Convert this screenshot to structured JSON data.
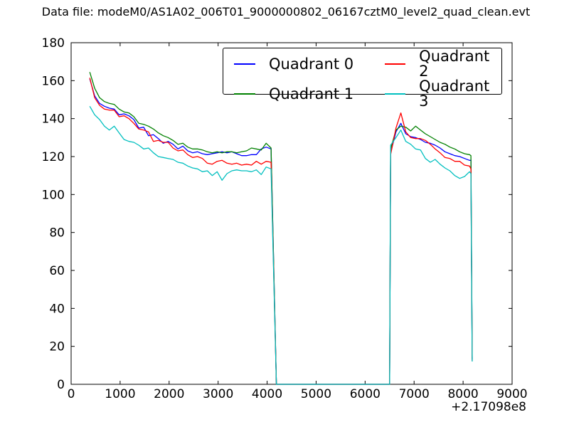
{
  "figure": {
    "title": "Data file: modeM0/AS1A02_006T01_9000000802_06167cztM0_level2_quad_clean.evt",
    "background": "#ffffff"
  },
  "chart_data": {
    "type": "line",
    "title": "Data file: modeM0/AS1A02_006T01_9000000802_06167cztM0_level2_quad_clean.evt",
    "xlabel": "",
    "ylabel": "",
    "x_axis_offset": "+2.17098e8",
    "xlim": [
      0,
      9000
    ],
    "ylim": [
      0,
      180
    ],
    "xticks": [
      0,
      1000,
      2000,
      3000,
      4000,
      5000,
      6000,
      7000,
      8000,
      9000
    ],
    "yticks": [
      0,
      20,
      40,
      60,
      80,
      100,
      120,
      140,
      160,
      180
    ],
    "grid": false,
    "axes_color": "#000000",
    "legend": {
      "location": "upper center",
      "ncol": 2,
      "entries": [
        "Quadrant 0",
        "Quadrant 1",
        "Quadrant 2",
        "Quadrant 3"
      ]
    },
    "x": [
      380,
      480,
      580,
      680,
      780,
      880,
      980,
      1080,
      1180,
      1280,
      1380,
      1480,
      1580,
      1680,
      1780,
      1880,
      1980,
      2080,
      2180,
      2280,
      2380,
      2480,
      2580,
      2680,
      2780,
      2880,
      2980,
      3080,
      3180,
      3280,
      3380,
      3480,
      3580,
      3680,
      3780,
      3880,
      3980,
      4080,
      4190,
      6500,
      6520,
      6630,
      6730,
      6830,
      6930,
      7030,
      7130,
      7230,
      7330,
      7430,
      7530,
      7630,
      7730,
      7830,
      7930,
      8030,
      8130,
      8160,
      8185
    ],
    "series": [
      {
        "name": "Quadrant 0",
        "color": "#0000ff",
        "values": [
          161,
          152,
          148,
          146.5,
          145.5,
          145,
          142,
          142.5,
          141.5,
          139.5,
          135,
          135.5,
          131,
          131.5,
          129.5,
          127,
          128,
          126.5,
          124,
          125.5,
          123,
          122,
          122.5,
          121.5,
          121,
          121.5,
          122,
          122.5,
          122,
          122.5,
          121.5,
          120.5,
          120.5,
          121,
          121,
          124,
          125,
          124,
          0,
          0,
          122,
          133,
          137.5,
          132,
          130.5,
          130,
          129,
          127.5,
          127,
          126,
          124.5,
          122.5,
          121.5,
          120.5,
          120,
          119,
          118,
          118,
          13
        ]
      },
      {
        "name": "Quadrant 1",
        "color": "#008000",
        "values": [
          164.5,
          156,
          151,
          149,
          148,
          147.5,
          145,
          143.5,
          143,
          141,
          137.5,
          137,
          136,
          134.5,
          132.5,
          131,
          130,
          128.5,
          126.5,
          127,
          125,
          124,
          124,
          123.5,
          122.5,
          122,
          122.5,
          122,
          122.5,
          122.5,
          122,
          122.5,
          123,
          124.5,
          124,
          123.5,
          127,
          124.5,
          0,
          0,
          124,
          134,
          136,
          135.5,
          133.5,
          136,
          134,
          132,
          130.5,
          129,
          127.5,
          126.5,
          125,
          124,
          122.5,
          121.5,
          121,
          120.5,
          13.5
        ]
      },
      {
        "name": "Quadrant 2",
        "color": "#ff0000",
        "values": [
          161.5,
          151,
          147,
          145,
          144.5,
          144.5,
          141,
          141.5,
          140,
          137.5,
          134.5,
          134,
          133,
          128,
          128.5,
          127.5,
          127.5,
          124.5,
          123,
          123.5,
          121,
          119.5,
          120,
          119,
          116.5,
          116,
          117.5,
          118,
          116.5,
          116,
          116.5,
          115.5,
          116,
          115.5,
          117.5,
          116,
          117.5,
          117,
          0,
          0,
          121,
          135,
          143,
          133,
          130,
          129.5,
          129.5,
          128.5,
          126.5,
          124,
          122,
          119.5,
          119,
          117.5,
          117.5,
          115.5,
          115,
          113.5,
          12.5
        ]
      },
      {
        "name": "Quadrant 3",
        "color": "#00bfbf",
        "values": [
          146.5,
          142,
          139.5,
          136,
          134,
          136,
          132.5,
          129,
          128,
          127.5,
          126,
          124,
          124.5,
          122,
          120,
          119.5,
          119,
          118.5,
          117,
          116.5,
          115,
          114,
          113.5,
          112,
          112.5,
          110,
          112,
          107.5,
          111,
          112.5,
          113,
          112.5,
          112.5,
          112,
          113,
          110.5,
          114.5,
          113.5,
          0,
          0,
          126,
          130,
          134,
          128,
          126.5,
          124,
          123.5,
          119,
          117,
          118.5,
          116,
          114,
          112.5,
          110,
          108.5,
          109.5,
          112,
          111,
          12
        ]
      }
    ]
  }
}
